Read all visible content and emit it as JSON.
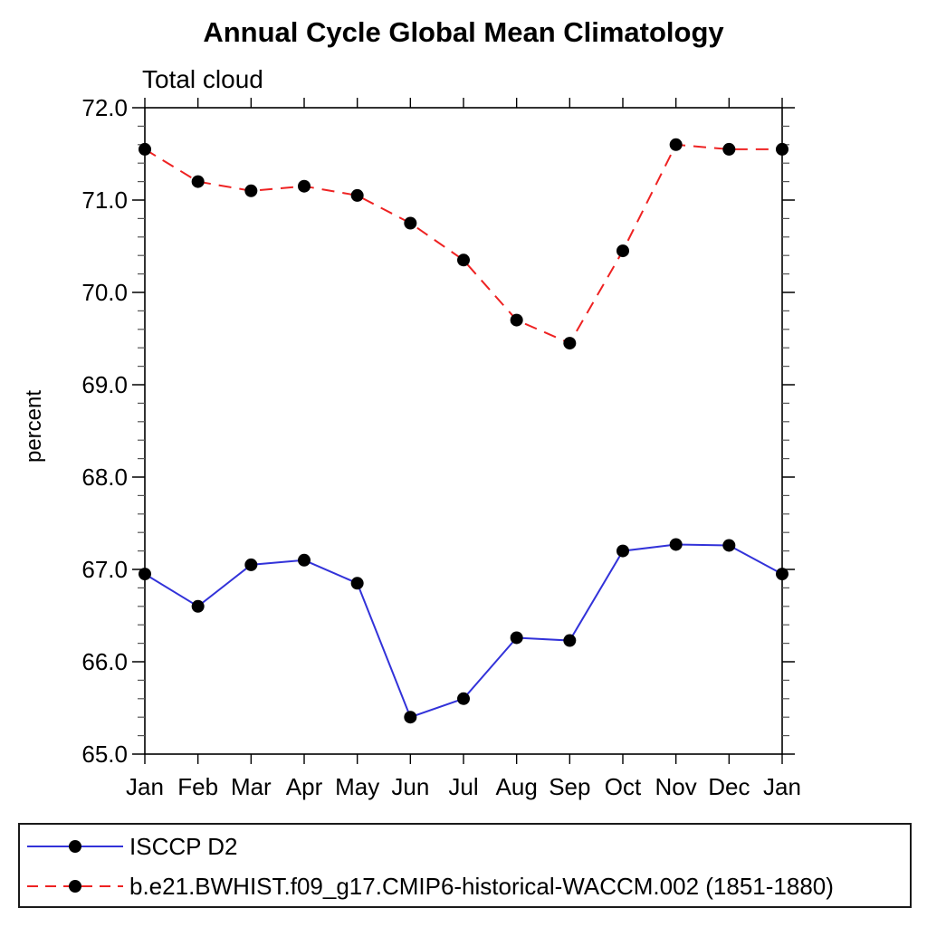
{
  "page": {
    "background": "#ffffff"
  },
  "header": {
    "title": "Annual Cycle Global Mean Climatology",
    "subtitle": "Total cloud"
  },
  "chart_data": {
    "type": "line",
    "title": "Annual Cycle Global Mean Climatology",
    "subtitle": "Total cloud",
    "xlabel": "",
    "ylabel": "percent",
    "categories": [
      "Jan",
      "Feb",
      "Mar",
      "Apr",
      "May",
      "Jun",
      "Jul",
      "Aug",
      "Sep",
      "Oct",
      "Nov",
      "Dec",
      "Jan"
    ],
    "ylim": [
      65.0,
      72.0
    ],
    "yticks": [
      {
        "value": 72.0,
        "label": "72.0"
      },
      {
        "value": 71.0,
        "label": "71.0"
      },
      {
        "value": 70.0,
        "label": "70.0"
      },
      {
        "value": 69.0,
        "label": "69.0"
      },
      {
        "value": 68.0,
        "label": "68.0"
      },
      {
        "value": 67.0,
        "label": "67.0"
      },
      {
        "value": 66.0,
        "label": "66.0"
      },
      {
        "value": 65.0,
        "label": "65.0"
      }
    ],
    "ytick_minor_interval": 0.2,
    "grid": false,
    "legend_position": "bottom-left-box",
    "series": [
      {
        "name": "ISCCP D2",
        "color": "#3232d9",
        "line_style": "solid",
        "marker": "filled-circle",
        "marker_color": "#000000",
        "values": [
          66.95,
          66.6,
          67.05,
          67.1,
          66.85,
          65.4,
          65.6,
          66.26,
          66.23,
          67.2,
          67.27,
          67.26,
          66.95
        ]
      },
      {
        "name": "b.e21.BWHIST.f09_g17.CMIP6-historical-WACCM.002 (1851-1880)",
        "color": "#ee2222",
        "line_style": "dashed",
        "marker": "filled-circle",
        "marker_color": "#000000",
        "values": [
          71.55,
          71.2,
          71.1,
          71.15,
          71.05,
          70.75,
          70.35,
          69.7,
          69.45,
          70.45,
          71.6,
          71.55,
          71.55
        ]
      }
    ]
  },
  "legend": {
    "entries": [
      {
        "label": "ISCCP D2"
      },
      {
        "label": "b.e21.BWHIST.f09_g17.CMIP6-historical-WACCM.002 (1851-1880)"
      }
    ]
  }
}
